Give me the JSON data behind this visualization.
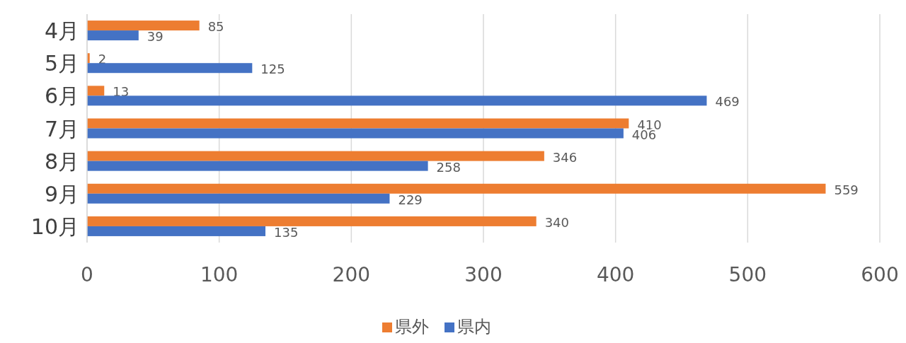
{
  "chart_data": {
    "type": "bar",
    "orientation": "horizontal",
    "categories": [
      "4月",
      "5月",
      "6月",
      "7月",
      "8月",
      "9月",
      "10月"
    ],
    "series": [
      {
        "name": "県外",
        "color": "#ed7d31",
        "values": [
          85,
          2,
          13,
          410,
          346,
          559,
          340
        ]
      },
      {
        "name": "県内",
        "color": "#4472c4",
        "values": [
          39,
          125,
          469,
          406,
          258,
          229,
          135
        ]
      }
    ],
    "xlim": [
      0,
      600
    ],
    "xticks": [
      0,
      100,
      200,
      300,
      400,
      500,
      600
    ],
    "grid": "x",
    "legend": "bottom",
    "data_labels": true
  }
}
